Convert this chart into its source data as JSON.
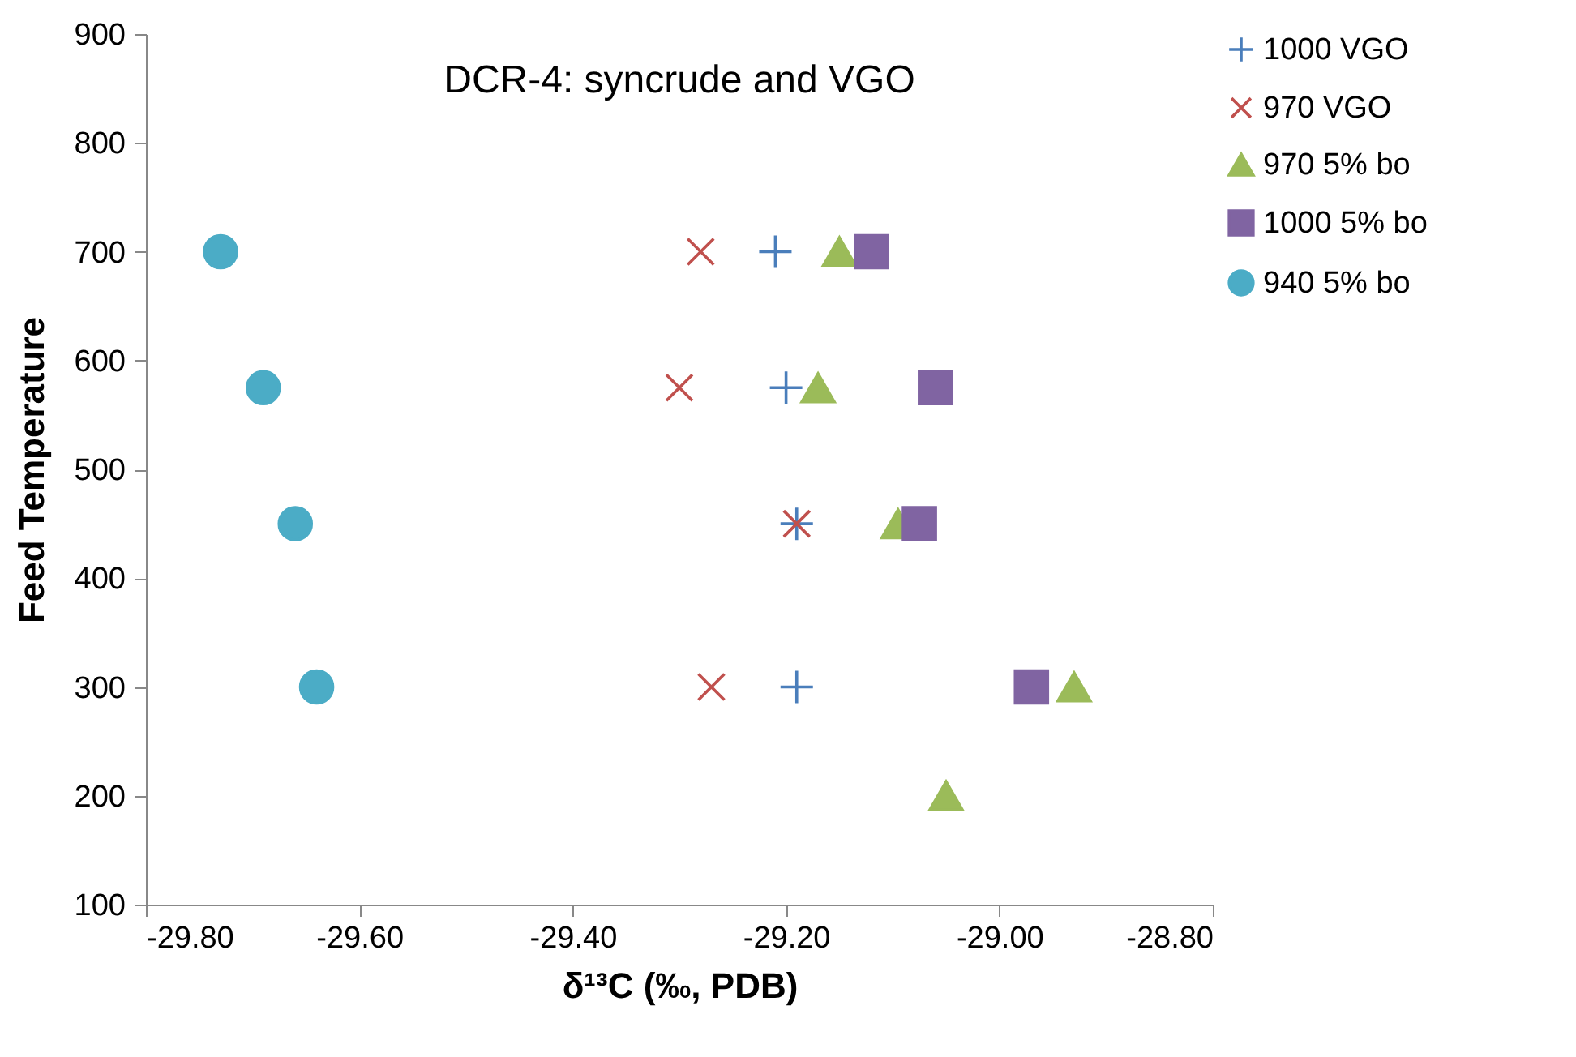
{
  "chart_data": {
    "type": "scatter",
    "title": "DCR-4: syncrude and VGO",
    "xlabel": "δ¹³C (‰, PDB)",
    "ylabel": "Feed Temperature",
    "xlim": [
      -29.8,
      -28.8
    ],
    "xticks": [
      {
        "value": -29.8,
        "label": "-29.80"
      },
      {
        "value": -29.6,
        "label": "-29.60"
      },
      {
        "value": -29.4,
        "label": "-29.40"
      },
      {
        "value": -29.2,
        "label": "-29.20"
      },
      {
        "value": -29.0,
        "label": "-29.00"
      },
      {
        "value": -28.8,
        "label": "-28.80"
      }
    ],
    "ylim": [
      100,
      900
    ],
    "yticks": [
      100,
      200,
      300,
      400,
      500,
      600,
      700,
      800,
      900
    ],
    "grid": false,
    "legend": "right",
    "series": [
      {
        "name": "1000 VGO",
        "color": "#4a7ebb",
        "marker": "plus",
        "x": [
          -29.21,
          -29.2,
          -29.19,
          -29.19
        ],
        "values": [
          700,
          575,
          450,
          300
        ]
      },
      {
        "name": "970 VGO",
        "color": "#c0504d",
        "marker": "cross",
        "x": [
          -29.28,
          -29.3,
          -29.19,
          -29.27
        ],
        "values": [
          700,
          575,
          450,
          300
        ]
      },
      {
        "name": "970 5% bo",
        "color": "#9bbb59",
        "marker": "triangle",
        "x": [
          -29.15,
          -29.17,
          -29.095,
          -28.93,
          -29.05
        ],
        "values": [
          700,
          575,
          450,
          300,
          200
        ]
      },
      {
        "name": "1000 5% bo",
        "color": "#8064a2",
        "marker": "square",
        "x": [
          -29.12,
          -29.06,
          -29.075,
          -28.97
        ],
        "values": [
          700,
          575,
          450,
          300
        ]
      },
      {
        "name": "940 5% bo",
        "color": "#4bacc6",
        "marker": "circle",
        "x": [
          -29.73,
          -29.69,
          -29.66,
          -29.64
        ],
        "values": [
          700,
          575,
          450,
          300
        ]
      }
    ]
  }
}
